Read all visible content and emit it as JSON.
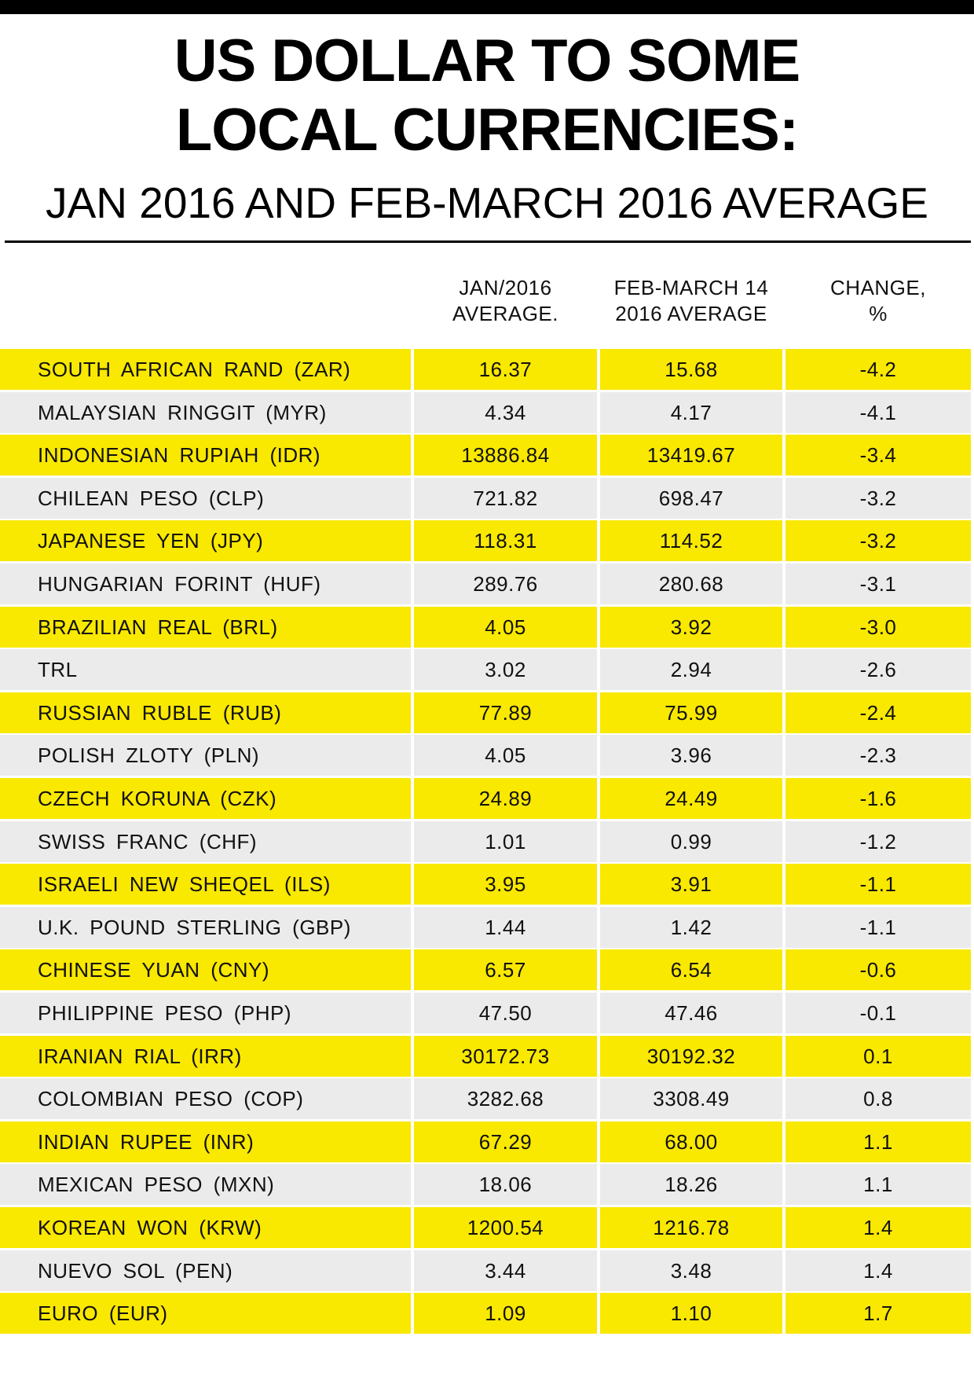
{
  "header": {
    "title_lines": [
      "US DOLLAR TO SOME",
      "LOCAL CURRENCIES:"
    ],
    "subtitle": "JAN 2016 AND FEB-MARCH 2016 AVERAGE"
  },
  "table": {
    "columns": [
      [
        "JAN/2016",
        "AVERAGE."
      ],
      [
        "FEB-MARCH 14",
        "2016 AVERAGE"
      ],
      [
        "CHANGE,",
        "%"
      ]
    ],
    "rows": [
      [
        "SOUTH AFRICAN RAND (ZAR)",
        "16.37",
        "15.68",
        "-4.2"
      ],
      [
        "MALAYSIAN RINGGIT (MYR)",
        "4.34",
        "4.17",
        "-4.1"
      ],
      [
        "INDONESIAN RUPIAH (IDR)",
        "13886.84",
        "13419.67",
        "-3.4"
      ],
      [
        "CHILEAN PESO (CLP)",
        "721.82",
        "698.47",
        "-3.2"
      ],
      [
        "JAPANESE YEN (JPY)",
        "118.31",
        "114.52",
        "-3.2"
      ],
      [
        "HUNGARIAN FORINT (HUF)",
        "289.76",
        "280.68",
        "-3.1"
      ],
      [
        "BRAZILIAN REAL (BRL)",
        "4.05",
        "3.92",
        "-3.0"
      ],
      [
        "TRL",
        "3.02",
        "2.94",
        "-2.6"
      ],
      [
        "RUSSIAN RUBLE (RUB)",
        "77.89",
        "75.99",
        "-2.4"
      ],
      [
        "POLISH ZLOTY (PLN)",
        "4.05",
        "3.96",
        "-2.3"
      ],
      [
        "CZECH KORUNA (CZK)",
        "24.89",
        "24.49",
        "-1.6"
      ],
      [
        "SWISS FRANC (CHF)",
        "1.01",
        "0.99",
        "-1.2"
      ],
      [
        "ISRAELI NEW SHEQEL (ILS)",
        "3.95",
        "3.91",
        "-1.1"
      ],
      [
        "U.K. POUND STERLING (GBP)",
        "1.44",
        "1.42",
        "-1.1"
      ],
      [
        "CHINESE YUAN (CNY)",
        "6.57",
        "6.54",
        "-0.6"
      ],
      [
        "PHILIPPINE PESO (PHP)",
        "47.50",
        "47.46",
        "-0.1"
      ],
      [
        "IRANIAN RIAL (IRR)",
        "30172.73",
        "30192.32",
        "0.1"
      ],
      [
        "COLOMBIAN PESO (COP)",
        "3282.68",
        "3308.49",
        "0.8"
      ],
      [
        "INDIAN RUPEE (INR)",
        "67.29",
        "68.00",
        "1.1"
      ],
      [
        "MEXICAN PESO (MXN)",
        "18.06",
        "18.26",
        "1.1"
      ],
      [
        "KOREAN WON (KRW)",
        "1200.54",
        "1216.78",
        "1.4"
      ],
      [
        "NUEVO SOL (PEN)",
        "3.44",
        "3.48",
        "1.4"
      ],
      [
        "EURO (EUR)",
        "1.09",
        "1.10",
        "1.7"
      ]
    ]
  }
}
